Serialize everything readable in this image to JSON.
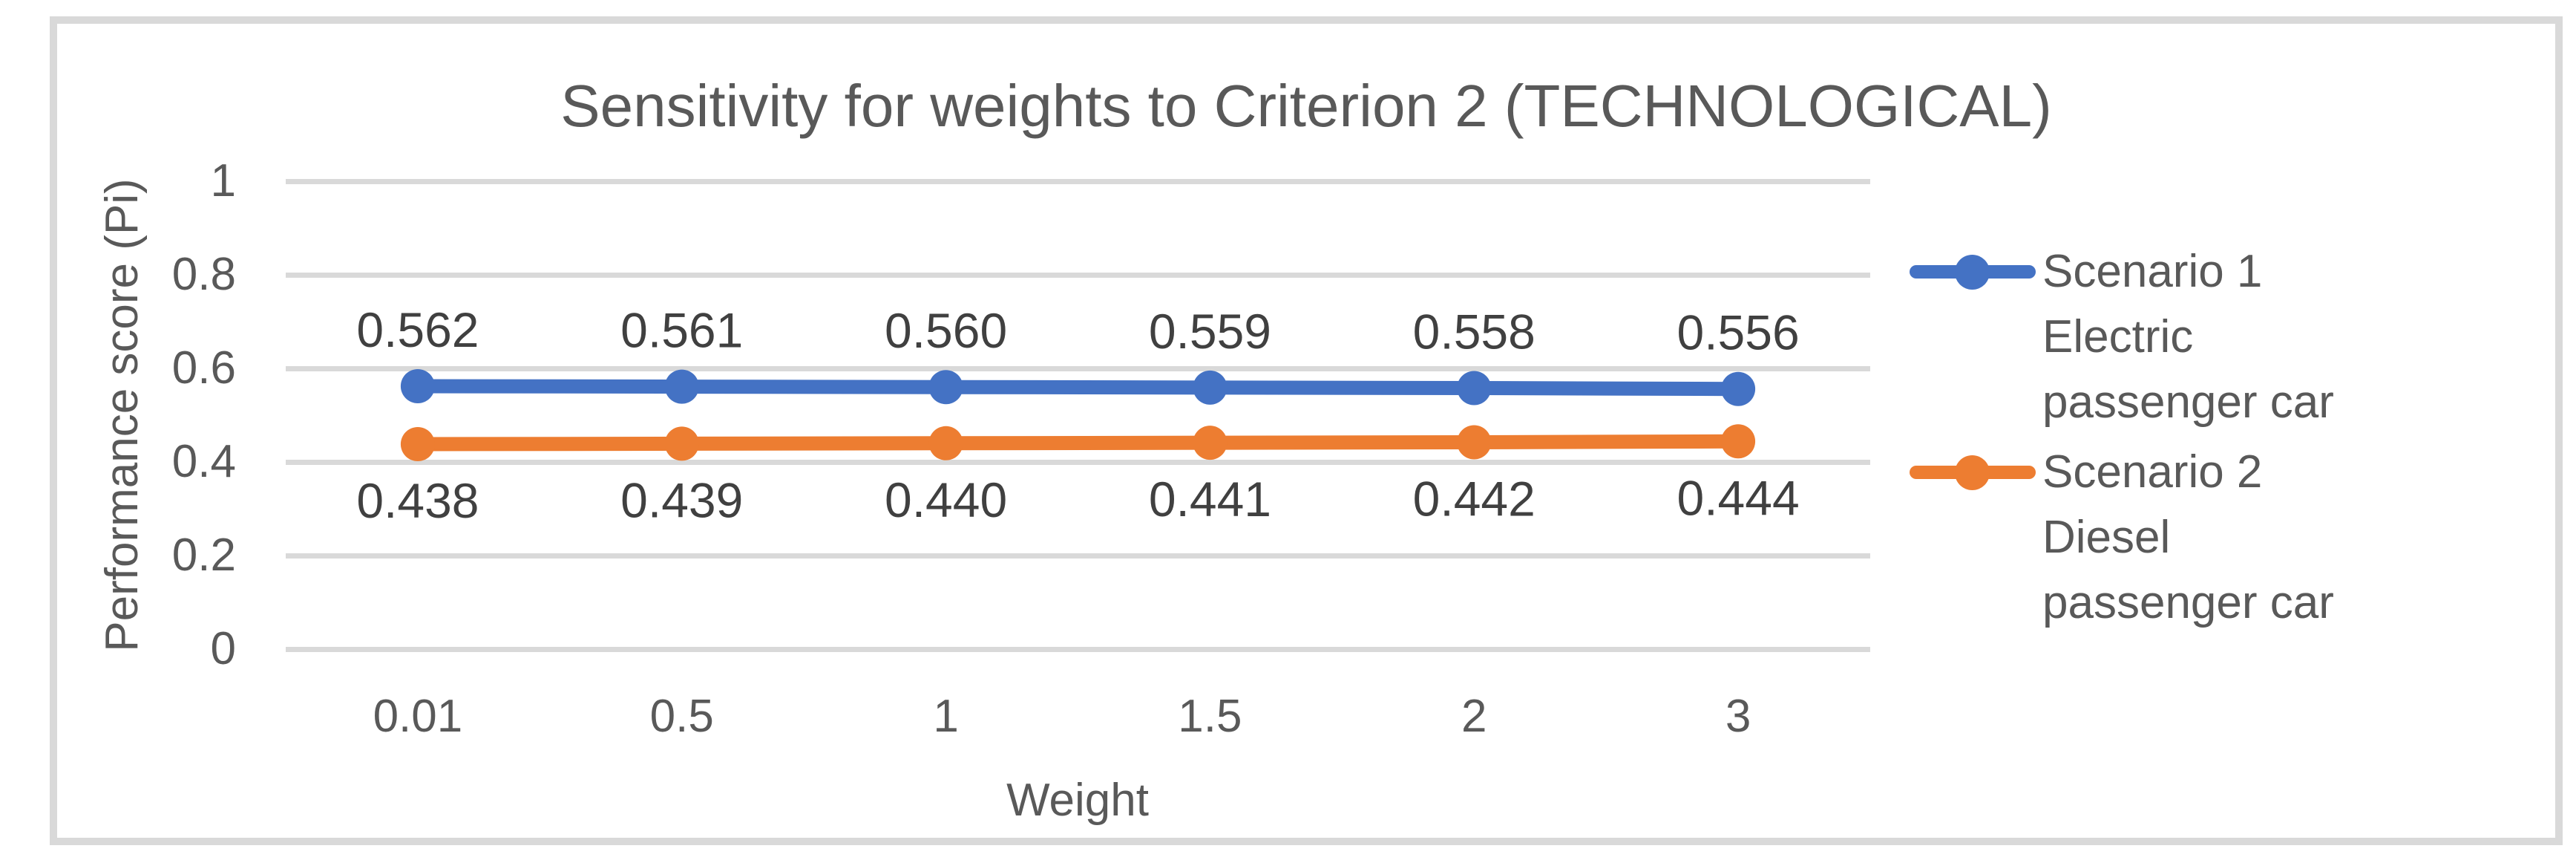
{
  "chart_data": {
    "type": "line",
    "title": "Sensitivity for weights to Criterion 2 (TECHNOLOGICAL)",
    "xlabel": "Weight",
    "ylabel": "Performance score (Pi)",
    "categories": [
      "0.01",
      "0.5",
      "1",
      "1.5",
      "2",
      "3"
    ],
    "series": [
      {
        "name": "Scenario 1 Electric passenger car",
        "color": "#4472C4",
        "values": [
          0.562,
          0.561,
          0.56,
          0.559,
          0.558,
          0.556
        ],
        "labels": [
          "0.562",
          "0.561",
          "0.560",
          "0.559",
          "0.558",
          "0.556"
        ],
        "label_position": "above"
      },
      {
        "name": "Scenario 2 Diesel passenger car",
        "color": "#ED7D31",
        "values": [
          0.438,
          0.439,
          0.44,
          0.441,
          0.442,
          0.444
        ],
        "labels": [
          "0.438",
          "0.439",
          "0.440",
          "0.441",
          "0.442",
          "0.444"
        ],
        "label_position": "below"
      }
    ],
    "ylim": [
      0,
      1
    ],
    "yticks": [
      0,
      0.2,
      0.4,
      0.6,
      0.8,
      1
    ],
    "ytick_labels": [
      "0",
      "0.2",
      "0.4",
      "0.6",
      "0.8",
      "1"
    ],
    "grid": "horizontal-only",
    "legend_position": "right",
    "legend": [
      {
        "lines": [
          "Scenario 1",
          "Electric",
          "passenger car"
        ],
        "color": "#4472C4"
      },
      {
        "lines": [
          "Scenario 2",
          "Diesel",
          "passenger car"
        ],
        "color": "#ED7D31"
      }
    ],
    "marker": "circle"
  },
  "colors": {
    "series_blue": "#4472C4",
    "series_orange": "#ED7D31",
    "gridline": "#D9D9D9",
    "frame_border": "#D9D9D9",
    "axis_text": "#595959",
    "data_label_text": "#404040",
    "background": "#FFFFFF"
  }
}
